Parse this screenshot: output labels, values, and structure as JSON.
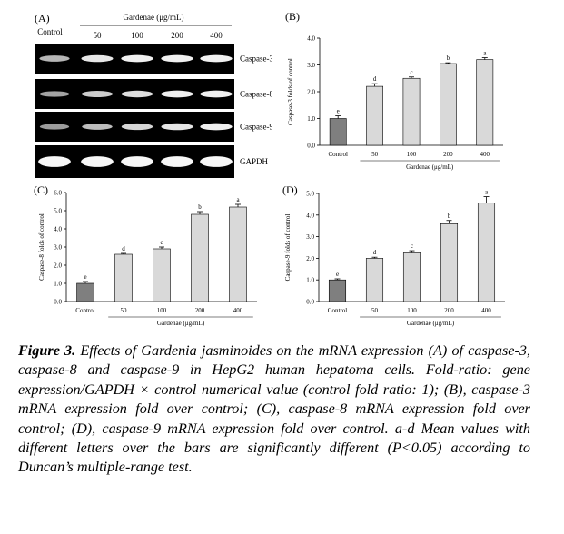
{
  "gel": {
    "label": "(A)",
    "control_label": "Control",
    "conc_header": "Gardenae (μg/mL)",
    "concentrations": [
      "50",
      "100",
      "200",
      "400"
    ],
    "rows": [
      {
        "name": "Caspase-3",
        "intensity": [
          0.55,
          0.85,
          0.9,
          0.9,
          0.9
        ]
      },
      {
        "name": "Caspase-8",
        "intensity": [
          0.45,
          0.7,
          0.8,
          0.9,
          0.9
        ]
      },
      {
        "name": "Caspase-9",
        "intensity": [
          0.4,
          0.6,
          0.75,
          0.85,
          0.9
        ]
      },
      {
        "name": "GAPDH",
        "intensity": [
          0.95,
          0.95,
          0.95,
          0.95,
          0.95
        ]
      }
    ]
  },
  "chart_data": [
    {
      "panel": "(B)",
      "type": "bar",
      "categories": [
        "Control",
        "50",
        "100",
        "200",
        "400"
      ],
      "values": [
        1.0,
        2.2,
        2.5,
        3.05,
        3.2
      ],
      "errors": [
        0.1,
        0.1,
        0.05,
        0.03,
        0.07
      ],
      "letters": [
        "e",
        "d",
        "c",
        "b",
        "a"
      ],
      "ylabel": "Caspase-3 folds of control",
      "xlabel": "Gardenae (μg/mL)",
      "ylim": [
        0,
        4
      ],
      "yticks": [
        "0.0",
        "1.0",
        "2.0",
        "3.0",
        "4.0"
      ]
    },
    {
      "panel": "(C)",
      "type": "bar",
      "categories": [
        "Control",
        "50",
        "100",
        "200",
        "400"
      ],
      "values": [
        1.0,
        2.6,
        2.9,
        4.8,
        5.2
      ],
      "errors": [
        0.1,
        0.05,
        0.1,
        0.15,
        0.15
      ],
      "letters": [
        "e",
        "d",
        "c",
        "b",
        "a"
      ],
      "ylabel": "Caspase-8 folds of control",
      "xlabel": "Gardenae (μg/mL)",
      "ylim": [
        0,
        6
      ],
      "yticks": [
        "0.0",
        "1.0",
        "2.0",
        "3.0",
        "4.0",
        "5.0",
        "6.0"
      ]
    },
    {
      "panel": "(D)",
      "type": "bar",
      "categories": [
        "Control",
        "50",
        "100",
        "200",
        "400"
      ],
      "values": [
        1.0,
        2.0,
        2.25,
        3.6,
        4.55
      ],
      "errors": [
        0.05,
        0.05,
        0.1,
        0.15,
        0.3
      ],
      "letters": [
        "e",
        "d",
        "c",
        "b",
        "a"
      ],
      "ylabel": "Caspase-9 folds of control",
      "xlabel": "Gardenae (μg/mL)",
      "ylim": [
        0,
        5
      ],
      "yticks": [
        "0.0",
        "1.0",
        "2.0",
        "3.0",
        "4.0",
        "5.0"
      ]
    }
  ],
  "caption": {
    "title": "Figure 3.",
    "text": " Effects of Gardenia jasminoides on the mRNA expression (A) of caspase-3, caspase-8 and caspase-9 in HepG2 human hepatoma cells. Fold-ratio: gene expression/GAPDH × control numerical value (control fold ratio: 1); (B), caspase-3 mRNA expression fold over control; (C), caspase-8 mRNA expression fold over control; (D), caspase-9 mRNA expression fold over control. a-d Mean values with different letters over the bars are significantly different (P<0.05) according to Duncan’s multiple-range test."
  },
  "colors": {
    "control_bar": "#7f7f7f",
    "treatment_bar": "#d9d9d9",
    "gel_background": "#000000",
    "band": "#ffffff"
  }
}
